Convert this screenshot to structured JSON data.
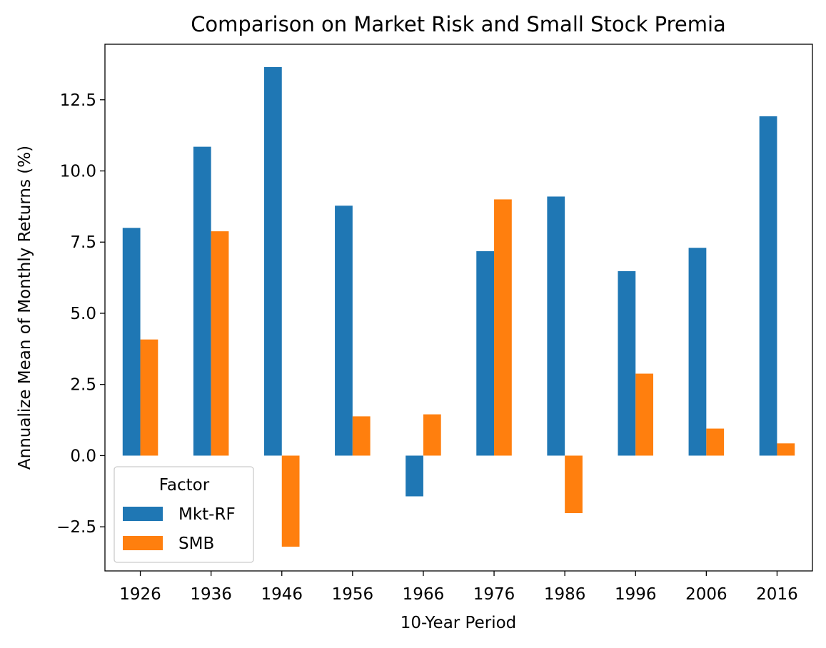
{
  "chart_data": {
    "type": "bar",
    "title": "Comparison on Market Risk and Small Stock Premia",
    "xlabel": "10-Year Period",
    "ylabel": "Annualize Mean of Monthly Returns (%)",
    "categories": [
      "1926",
      "1936",
      "1946",
      "1956",
      "1966",
      "1976",
      "1986",
      "1996",
      "2006",
      "2016"
    ],
    "series": [
      {
        "name": "Mkt-RF",
        "color": "#1f77b4",
        "values": [
          8.0,
          10.85,
          13.65,
          8.78,
          -1.43,
          7.18,
          9.1,
          6.48,
          7.3,
          11.92
        ]
      },
      {
        "name": "SMB",
        "color": "#ff7f0e",
        "values": [
          4.08,
          7.88,
          -3.2,
          1.38,
          1.45,
          9.0,
          -2.02,
          2.88,
          0.95,
          0.43
        ]
      }
    ],
    "ylim": [
      -4.05,
      14.45
    ],
    "yticks": [
      -2.5,
      0.0,
      2.5,
      5.0,
      7.5,
      10.0,
      12.5
    ],
    "ytick_labels": [
      "−2.5",
      "0.0",
      "2.5",
      "5.0",
      "7.5",
      "10.0",
      "12.5"
    ],
    "grid": false,
    "legend": {
      "title": "Factor",
      "position": "lower-left"
    }
  }
}
